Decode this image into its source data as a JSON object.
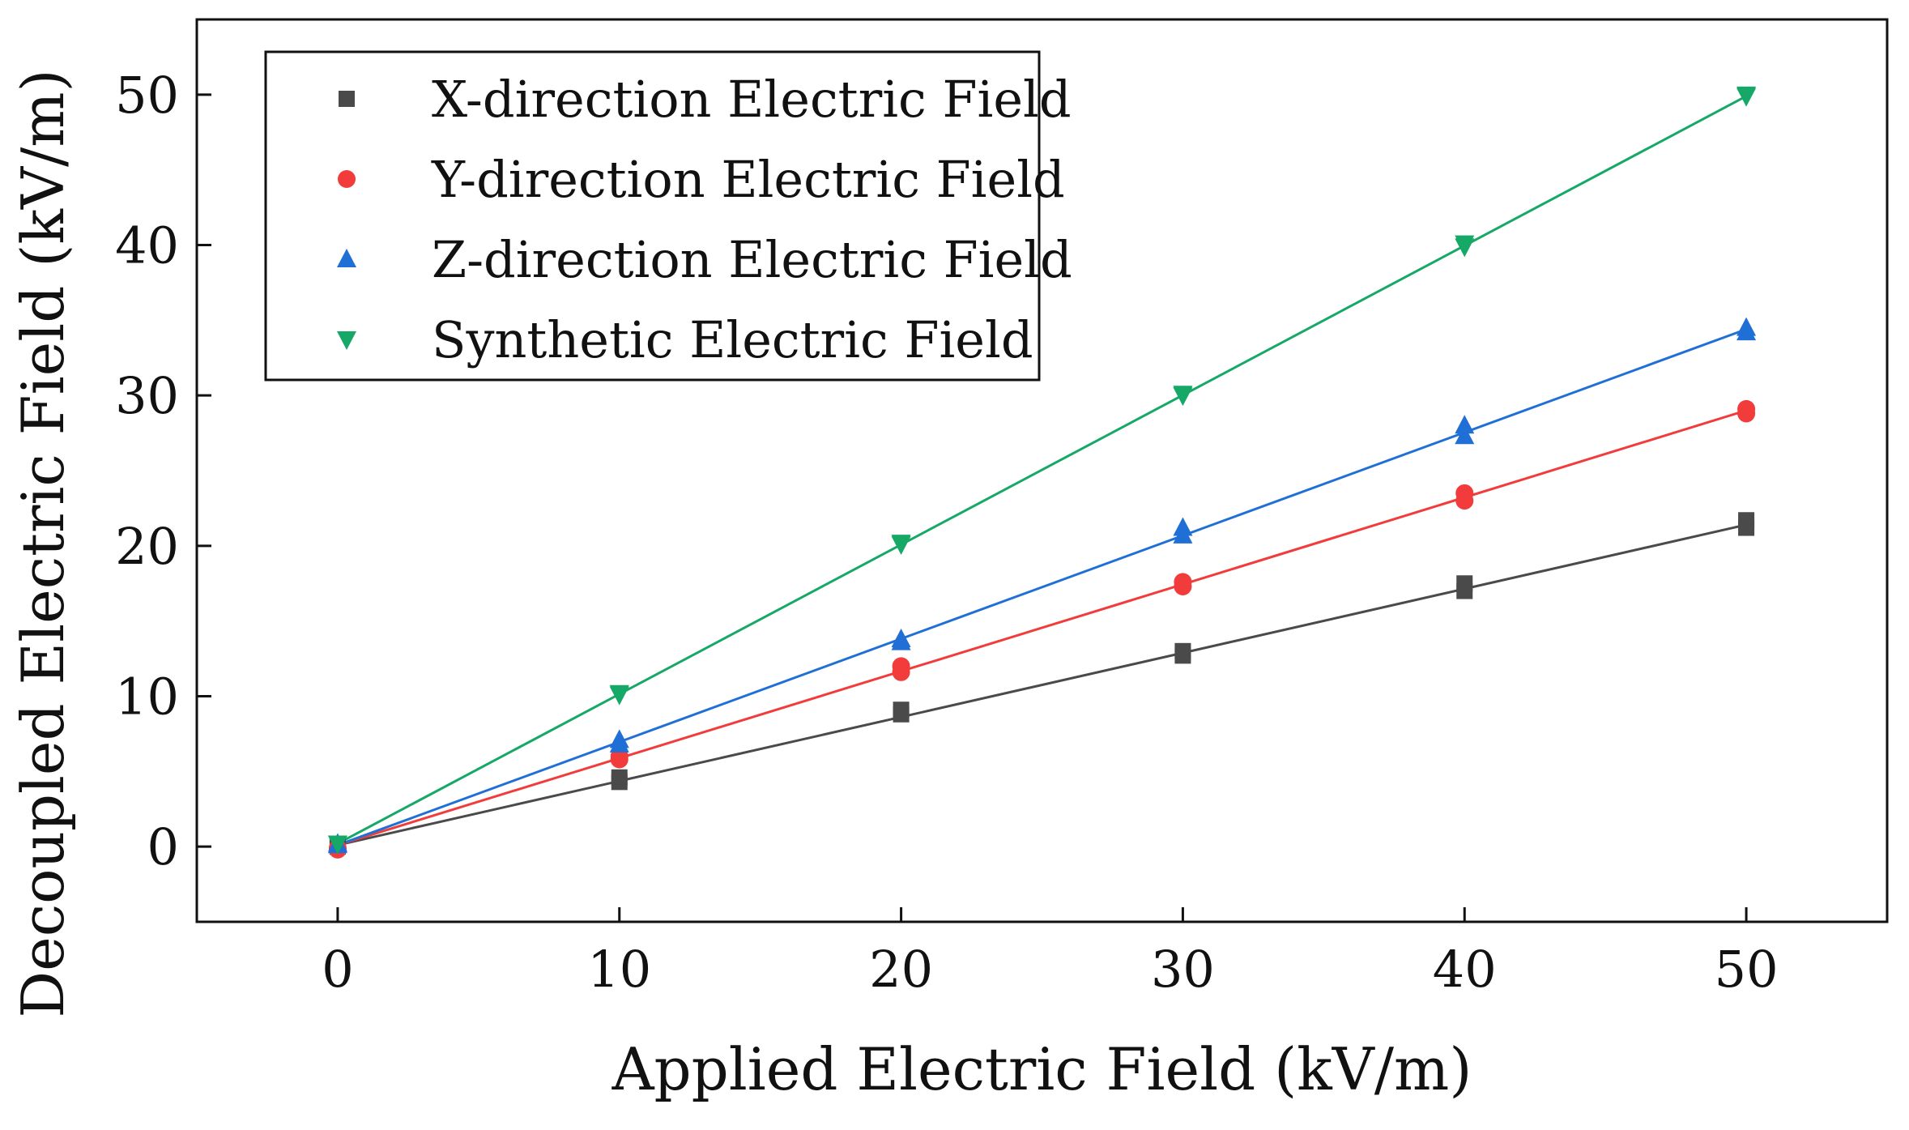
{
  "chart_data": {
    "type": "scatter",
    "title": "",
    "xlabel": "Applied Electric Field (kV/m)",
    "ylabel": "Decoupled Electric Field (kV/m)",
    "xlim": [
      -5,
      55
    ],
    "ylim": [
      -5,
      55
    ],
    "xticks": [
      0,
      10,
      20,
      30,
      40,
      50
    ],
    "yticks": [
      0,
      10,
      20,
      30,
      40,
      50
    ],
    "xtick_labels": [
      "0",
      "10",
      "20",
      "30",
      "40",
      "50"
    ],
    "ytick_labels": [
      "0",
      "10",
      "20",
      "30",
      "40",
      "50"
    ],
    "grid": false,
    "legend_position": "top-left",
    "x": [
      0,
      10,
      20,
      30,
      40,
      50
    ],
    "series": [
      {
        "name": "X-direction Electric Field",
        "marker": "square",
        "color": "#4a4a4a",
        "values": [
          0.1,
          4.6,
          9.1,
          13.0,
          17.5,
          21.7
        ],
        "values_repeat": [
          0.0,
          4.3,
          8.8,
          12.7,
          17.0,
          21.2
        ],
        "fit": {
          "slope": 0.426,
          "intercept": 0.1
        }
      },
      {
        "name": "Y-direction Electric Field",
        "marker": "circle",
        "color": "#f23c3c",
        "values": [
          -0.2,
          6.0,
          12.0,
          17.6,
          23.5,
          29.1
        ],
        "values_repeat": [
          -0.1,
          5.8,
          11.6,
          17.3,
          23.0,
          28.8
        ],
        "fit": {
          "slope": 0.578,
          "intercept": 0.1
        }
      },
      {
        "name": "Z-direction Electric Field",
        "marker": "triangle-up",
        "color": "#1f6fd6",
        "values": [
          0.2,
          7.1,
          13.8,
          21.2,
          28.0,
          34.5
        ],
        "values_repeat": [
          0.1,
          6.8,
          13.6,
          20.7,
          27.3,
          34.2
        ],
        "fit": {
          "slope": 0.686,
          "intercept": 0.1
        }
      },
      {
        "name": "Synthetic Electric Field",
        "marker": "triangle-down",
        "color": "#16a866",
        "values": [
          0.2,
          10.1,
          20.1,
          30.0,
          39.9,
          49.9
        ],
        "values_repeat": [
          0.2,
          10.2,
          20.2,
          30.1,
          40.1,
          50.0
        ],
        "fit": {
          "slope": 0.994,
          "intercept": 0.2
        }
      }
    ]
  }
}
